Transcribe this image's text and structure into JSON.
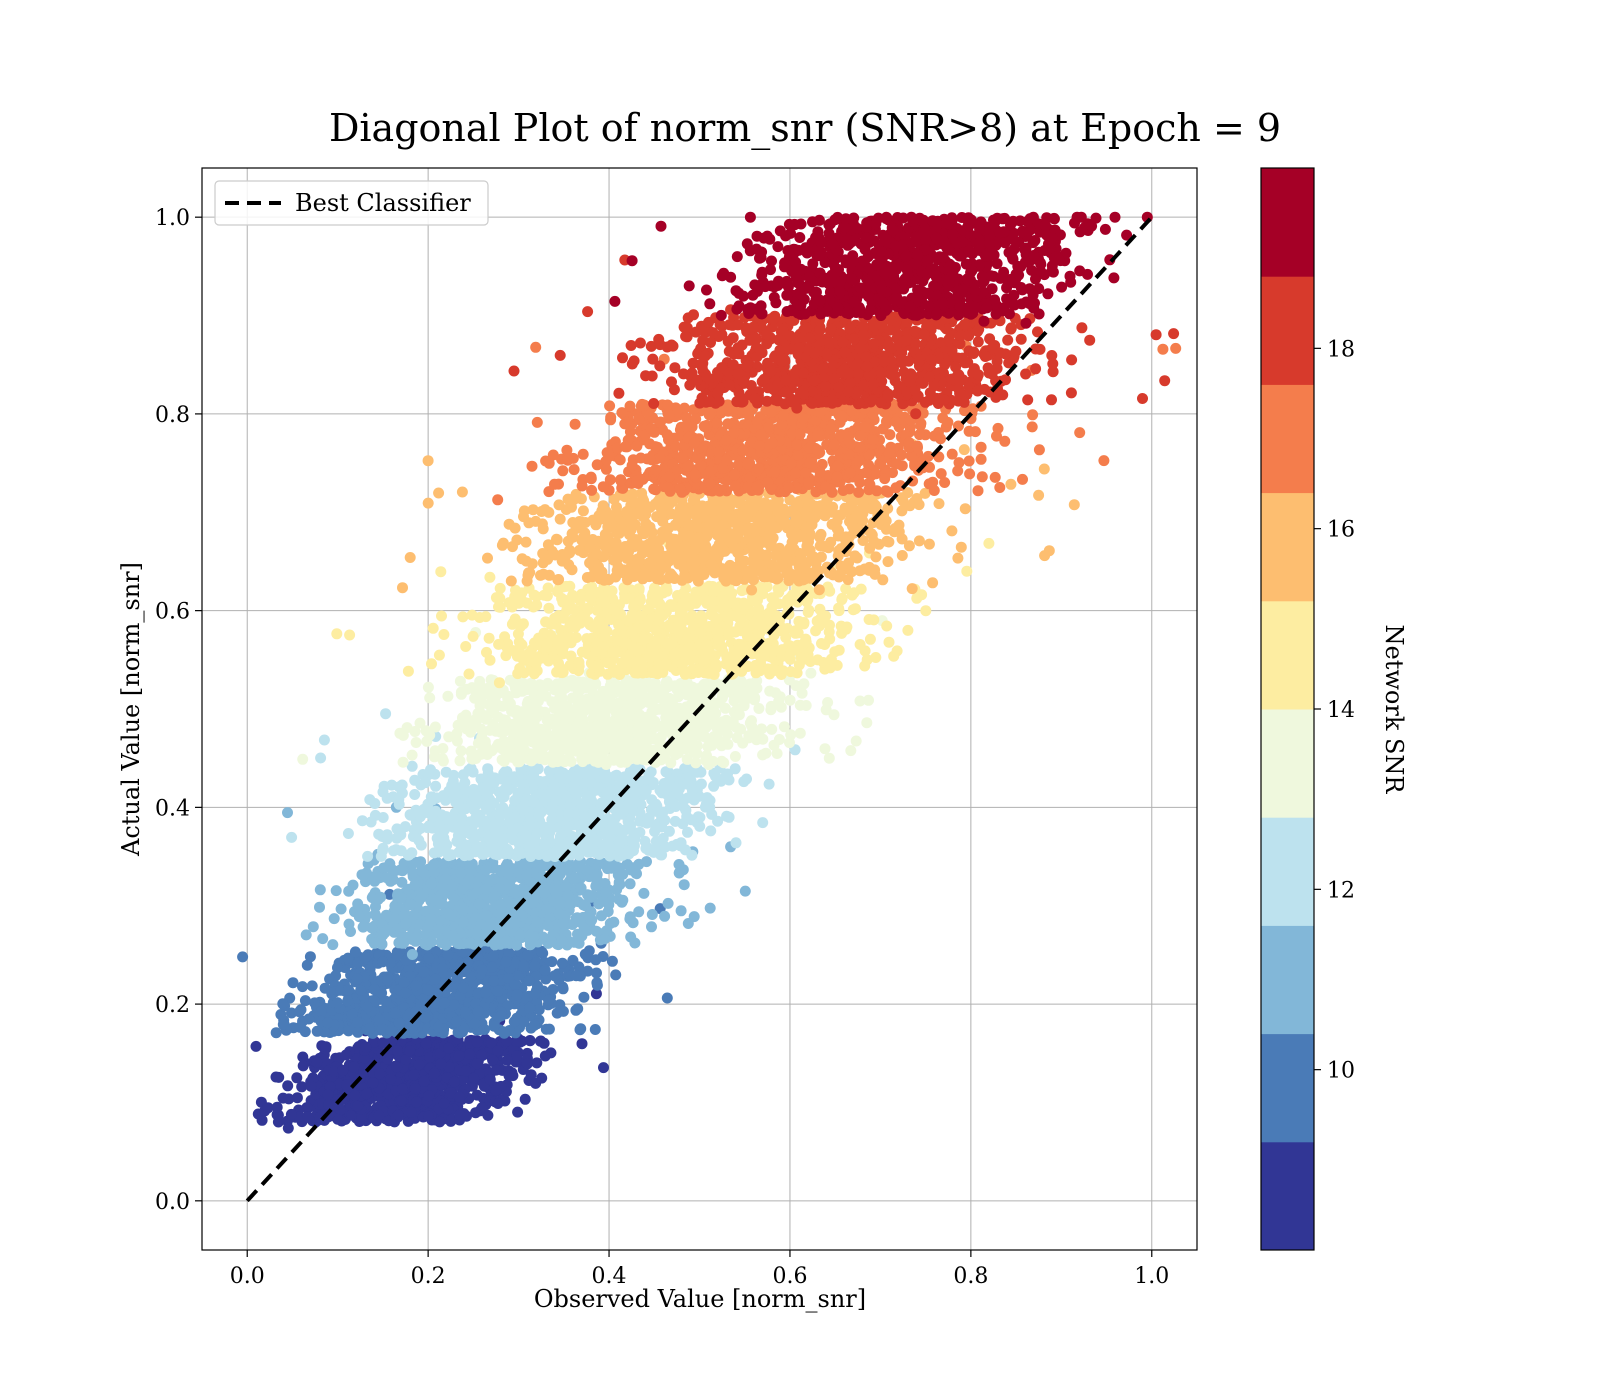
{
  "chart_data": {
    "type": "scatter",
    "title": "Diagonal Plot of norm_snr (SNR>8) at Epoch = 9",
    "xlabel": "Observed Value [norm_snr]",
    "ylabel": "Actual Value [norm_snr]",
    "xlim": [
      -0.05,
      1.05
    ],
    "ylim": [
      -0.05,
      1.05
    ],
    "x_ticks": [
      0.0,
      0.2,
      0.4,
      0.6,
      0.8,
      1.0
    ],
    "y_ticks": [
      0.0,
      0.2,
      0.4,
      0.6,
      0.8,
      1.0
    ],
    "x_tick_labels": [
      "0.0",
      "0.2",
      "0.4",
      "0.6",
      "0.8",
      "1.0"
    ],
    "y_tick_labels": [
      "0.0",
      "0.2",
      "0.4",
      "0.6",
      "0.8",
      "1.0"
    ],
    "grid": true,
    "legend": {
      "placement": "upper-left",
      "entries": [
        "Best Classifier"
      ]
    },
    "reference_line": {
      "name": "Best Classifier",
      "style": "dashed",
      "color": "#000000",
      "x": [
        0.0,
        1.0
      ],
      "y": [
        0.0,
        1.0
      ]
    },
    "colorbar": {
      "label": "Network SNR",
      "range": [
        8,
        20
      ],
      "ticks": [
        10,
        12,
        14,
        16,
        18
      ],
      "tick_labels": [
        "10",
        "12",
        "14",
        "16",
        "18"
      ],
      "colors": [
        "#313695",
        "#4a7bb7",
        "#82b7d8",
        "#bde2ee",
        "#eff8dd",
        "#fdeda1",
        "#fdbe70",
        "#f47d4c",
        "#d73a2c",
        "#a50026"
      ]
    },
    "bands": [
      {
        "snr_bin": [
          8.0,
          9.2
        ],
        "color": "#313695",
        "y_range": [
          0.08,
          0.165
        ],
        "x_range": [
          0.02,
          0.33
        ],
        "slope": 1.7
      },
      {
        "snr_bin": [
          9.2,
          10.4
        ],
        "color": "#4a7bb7",
        "y_range": [
          0.17,
          0.255
        ],
        "x_range": [
          0.03,
          0.4
        ],
        "slope": 1.3
      },
      {
        "snr_bin": [
          10.4,
          11.6
        ],
        "color": "#82b7d8",
        "y_range": [
          0.26,
          0.345
        ],
        "x_range": [
          0.06,
          0.48
        ],
        "slope": 1.1
      },
      {
        "snr_bin": [
          11.6,
          12.8
        ],
        "color": "#bde2ee",
        "y_range": [
          0.35,
          0.44
        ],
        "x_range": [
          0.1,
          0.58
        ],
        "slope": 1.05
      },
      {
        "snr_bin": [
          12.8,
          14.0
        ],
        "color": "#eff8dd",
        "y_range": [
          0.445,
          0.53
        ],
        "x_range": [
          0.15,
          0.67
        ],
        "slope": 1.05
      },
      {
        "snr_bin": [
          14.0,
          15.2
        ],
        "color": "#fdeda1",
        "y_range": [
          0.535,
          0.625
        ],
        "x_range": [
          0.19,
          0.75
        ],
        "slope": 1.05
      },
      {
        "snr_bin": [
          15.2,
          16.4
        ],
        "color": "#fdbe70",
        "y_range": [
          0.63,
          0.72
        ],
        "x_range": [
          0.25,
          0.8
        ],
        "slope": 1.05
      },
      {
        "snr_bin": [
          16.4,
          17.6
        ],
        "color": "#f47d4c",
        "y_range": [
          0.72,
          0.81
        ],
        "x_range": [
          0.31,
          0.86
        ],
        "slope": 1.05
      },
      {
        "snr_bin": [
          17.6,
          18.8
        ],
        "color": "#d73a2c",
        "y_range": [
          0.81,
          0.9
        ],
        "x_range": [
          0.4,
          0.93
        ],
        "slope": 1.1
      },
      {
        "snr_bin": [
          18.8,
          20.0
        ],
        "color": "#a50026",
        "y_range": [
          0.9,
          1.0
        ],
        "x_range": [
          0.5,
          0.97
        ],
        "slope": 1.2
      }
    ]
  }
}
